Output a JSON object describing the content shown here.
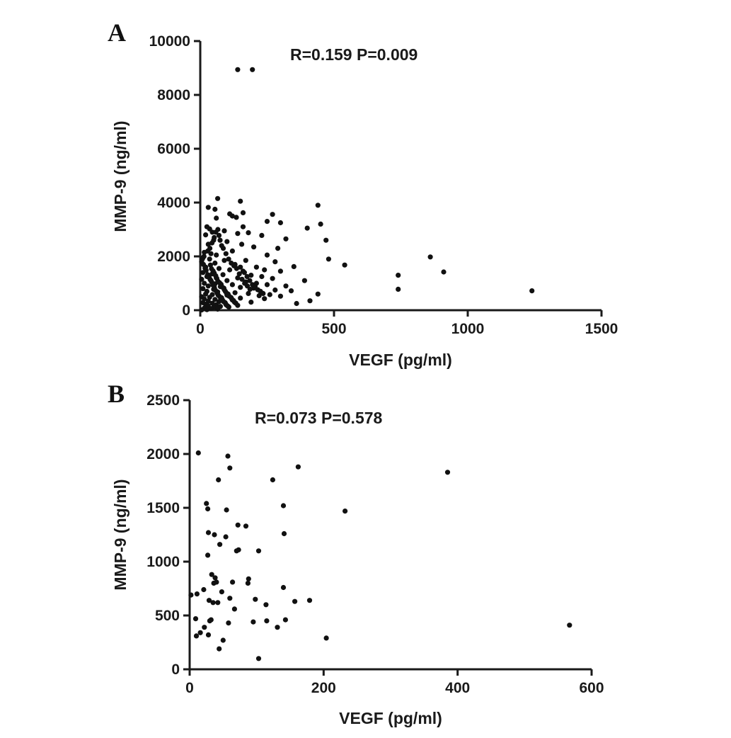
{
  "chart_data": [
    {
      "type": "scatter",
      "panel_label": "A",
      "annotation": "R=0.159 P=0.009",
      "xlabel": "VEGF (pg/ml)",
      "ylabel": "MMP-9 (ng/ml)",
      "xlim": [
        0,
        1500
      ],
      "ylim": [
        0,
        10000
      ],
      "xticks": [
        0,
        500,
        1000,
        1500
      ],
      "yticks": [
        0,
        2000,
        4000,
        6000,
        8000,
        10000
      ],
      "grid": false,
      "points": [
        [
          140,
          8940
        ],
        [
          195,
          8940
        ],
        [
          65,
          4150
        ],
        [
          150,
          4050
        ],
        [
          440,
          3900
        ],
        [
          30,
          3820
        ],
        [
          55,
          3750
        ],
        [
          110,
          3580
        ],
        [
          160,
          3620
        ],
        [
          270,
          3560
        ],
        [
          120,
          3500
        ],
        [
          135,
          3450
        ],
        [
          60,
          3420
        ],
        [
          450,
          3200
        ],
        [
          300,
          3250
        ],
        [
          250,
          3300
        ],
        [
          160,
          3100
        ],
        [
          400,
          3050
        ],
        [
          25,
          3100
        ],
        [
          35,
          3020
        ],
        [
          90,
          2950
        ],
        [
          45,
          2900
        ],
        [
          180,
          2880
        ],
        [
          20,
          2800
        ],
        [
          70,
          2780
        ],
        [
          140,
          2850
        ],
        [
          230,
          2780
        ],
        [
          320,
          2650
        ],
        [
          470,
          2600
        ],
        [
          50,
          2600
        ],
        [
          100,
          2550
        ],
        [
          155,
          2450
        ],
        [
          30,
          2450
        ],
        [
          80,
          2400
        ],
        [
          200,
          2350
        ],
        [
          290,
          2300
        ],
        [
          120,
          2200
        ],
        [
          15,
          2150
        ],
        [
          40,
          2100
        ],
        [
          60,
          2050
        ],
        [
          250,
          2050
        ],
        [
          860,
          1980
        ],
        [
          10,
          1950
        ],
        [
          35,
          1900
        ],
        [
          90,
          1850
        ],
        [
          170,
          1850
        ],
        [
          480,
          1900
        ],
        [
          280,
          1800
        ],
        [
          5,
          1800
        ],
        [
          55,
          1750
        ],
        [
          130,
          1700
        ],
        [
          540,
          1680
        ],
        [
          350,
          1620
        ],
        [
          210,
          1600
        ],
        [
          20,
          1600
        ],
        [
          70,
          1550
        ],
        [
          110,
          1500
        ],
        [
          160,
          1450
        ],
        [
          240,
          1500
        ],
        [
          300,
          1450
        ],
        [
          910,
          1420
        ],
        [
          10,
          1400
        ],
        [
          45,
          1350
        ],
        [
          85,
          1320
        ],
        [
          190,
          1300
        ],
        [
          740,
          1300
        ],
        [
          230,
          1250
        ],
        [
          25,
          1250
        ],
        [
          60,
          1200
        ],
        [
          140,
          1200
        ],
        [
          270,
          1180
        ],
        [
          5,
          1150
        ],
        [
          40,
          1100
        ],
        [
          100,
          1100
        ],
        [
          390,
          1100
        ],
        [
          170,
          1050
        ],
        [
          210,
          1000
        ],
        [
          15,
          1000
        ],
        [
          55,
          980
        ],
        [
          120,
          950
        ],
        [
          250,
          950
        ],
        [
          320,
          900
        ],
        [
          30,
          900
        ],
        [
          75,
          880
        ],
        [
          150,
          850
        ],
        [
          200,
          820
        ],
        [
          740,
          780
        ],
        [
          1240,
          720
        ],
        [
          10,
          800
        ],
        [
          50,
          780
        ],
        [
          90,
          760
        ],
        [
          280,
          750
        ],
        [
          340,
          720
        ],
        [
          25,
          700
        ],
        [
          65,
          680
        ],
        [
          130,
          650
        ],
        [
          180,
          620
        ],
        [
          440,
          600
        ],
        [
          20,
          600
        ],
        [
          45,
          580
        ],
        [
          100,
          560
        ],
        [
          220,
          540
        ],
        [
          300,
          520
        ],
        [
          5,
          500
        ],
        [
          35,
          480
        ],
        [
          80,
          460
        ],
        [
          150,
          450
        ],
        [
          240,
          430
        ],
        [
          15,
          420
        ],
        [
          55,
          400
        ],
        [
          120,
          380
        ],
        [
          410,
          350
        ],
        [
          30,
          340
        ],
        [
          70,
          320
        ],
        [
          190,
          300
        ],
        [
          360,
          250
        ],
        [
          10,
          280
        ],
        [
          45,
          260
        ],
        [
          95,
          240
        ],
        [
          20,
          220
        ],
        [
          60,
          200
        ],
        [
          140,
          180
        ],
        [
          30,
          160
        ],
        [
          75,
          140
        ],
        [
          50,
          100
        ],
        [
          15,
          80
        ],
        [
          40,
          60
        ],
        [
          65,
          40
        ],
        [
          25,
          20
        ],
        [
          5,
          10
        ],
        [
          38,
          1680
        ],
        [
          42,
          1540
        ],
        [
          48,
          1460
        ],
        [
          52,
          1380
        ],
        [
          58,
          1280
        ],
        [
          62,
          1180
        ],
        [
          66,
          1080
        ],
        [
          72,
          1020
        ],
        [
          78,
          960
        ],
        [
          82,
          860
        ],
        [
          88,
          820
        ],
        [
          94,
          700
        ],
        [
          98,
          640
        ],
        [
          104,
          600
        ],
        [
          108,
          520
        ],
        [
          115,
          470
        ],
        [
          118,
          420
        ],
        [
          124,
          360
        ],
        [
          128,
          300
        ],
        [
          133,
          260
        ],
        [
          12,
          1700
        ],
        [
          18,
          1560
        ],
        [
          22,
          1480
        ],
        [
          28,
          1320
        ],
        [
          33,
          1220
        ],
        [
          37,
          1140
        ],
        [
          43,
          1040
        ],
        [
          47,
          940
        ],
        [
          53,
          840
        ],
        [
          57,
          740
        ],
        [
          63,
          640
        ],
        [
          67,
          560
        ],
        [
          73,
          500
        ],
        [
          77,
          440
        ],
        [
          83,
          380
        ],
        [
          87,
          320
        ],
        [
          93,
          280
        ],
        [
          97,
          200
        ],
        [
          102,
          160
        ],
        [
          107,
          120
        ],
        [
          150,
          1600
        ],
        [
          165,
          1400
        ],
        [
          175,
          1250
        ],
        [
          185,
          1100
        ],
        [
          195,
          950
        ],
        [
          205,
          880
        ],
        [
          215,
          760
        ],
        [
          225,
          700
        ],
        [
          235,
          620
        ],
        [
          260,
          580
        ],
        [
          8,
          1900
        ],
        [
          14,
          2000
        ],
        [
          28,
          2200
        ],
        [
          36,
          2300
        ],
        [
          44,
          2500
        ],
        [
          52,
          2700
        ],
        [
          58,
          2900
        ],
        [
          66,
          3000
        ],
        [
          74,
          2600
        ],
        [
          86,
          2300
        ],
        [
          96,
          2100
        ],
        [
          106,
          1900
        ],
        [
          116,
          1750
        ],
        [
          126,
          1650
        ],
        [
          136,
          1550
        ],
        [
          146,
          1350
        ],
        [
          156,
          1150
        ],
        [
          166,
          1000
        ],
        [
          176,
          900
        ],
        [
          186,
          780
        ]
      ]
    },
    {
      "type": "scatter",
      "panel_label": "B",
      "annotation": "R=0.073 P=0.578",
      "xlabel": "VEGF (pg/ml)",
      "ylabel": "MMP-9 (ng/ml)",
      "xlim": [
        0,
        600
      ],
      "ylim": [
        0,
        2500
      ],
      "xticks": [
        0,
        200,
        400,
        600
      ],
      "yticks": [
        0,
        500,
        1000,
        1500,
        2000,
        2500
      ],
      "grid": false,
      "points": [
        [
          13,
          2010
        ],
        [
          57,
          1980
        ],
        [
          162,
          1880
        ],
        [
          60,
          1870
        ],
        [
          385,
          1830
        ],
        [
          43,
          1760
        ],
        [
          124,
          1760
        ],
        [
          25,
          1540
        ],
        [
          140,
          1520
        ],
        [
          27,
          1490
        ],
        [
          55,
          1480
        ],
        [
          232,
          1470
        ],
        [
          72,
          1340
        ],
        [
          84,
          1330
        ],
        [
          28,
          1270
        ],
        [
          37,
          1250
        ],
        [
          141,
          1260
        ],
        [
          54,
          1230
        ],
        [
          45,
          1160
        ],
        [
          73,
          1110
        ],
        [
          70,
          1100
        ],
        [
          103,
          1100
        ],
        [
          27,
          1060
        ],
        [
          33,
          880
        ],
        [
          88,
          840
        ],
        [
          38,
          850
        ],
        [
          40,
          810
        ],
        [
          36,
          800
        ],
        [
          64,
          810
        ],
        [
          87,
          800
        ],
        [
          140,
          760
        ],
        [
          21,
          740
        ],
        [
          48,
          720
        ],
        [
          2,
          690
        ],
        [
          11,
          700
        ],
        [
          29,
          640
        ],
        [
          179,
          640
        ],
        [
          157,
          630
        ],
        [
          35,
          620
        ],
        [
          42,
          620
        ],
        [
          114,
          600
        ],
        [
          67,
          560
        ],
        [
          95,
          440
        ],
        [
          143,
          460
        ],
        [
          567,
          410
        ],
        [
          9,
          470
        ],
        [
          30,
          450
        ],
        [
          32,
          460
        ],
        [
          115,
          450
        ],
        [
          58,
          430
        ],
        [
          131,
          390
        ],
        [
          22,
          390
        ],
        [
          28,
          320
        ],
        [
          16,
          340
        ],
        [
          10,
          310
        ],
        [
          204,
          290
        ],
        [
          50,
          270
        ],
        [
          44,
          190
        ],
        [
          103,
          100
        ],
        [
          60,
          660
        ],
        [
          98,
          650
        ]
      ]
    }
  ]
}
